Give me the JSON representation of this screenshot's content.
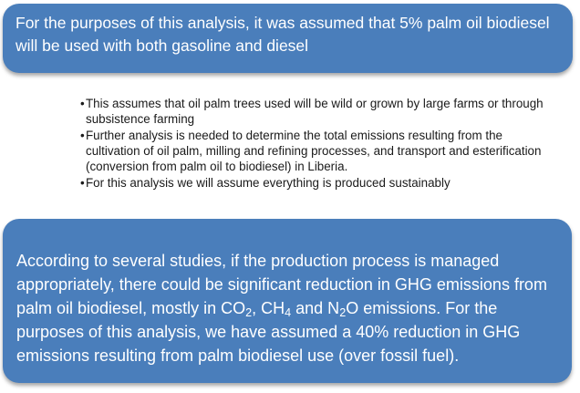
{
  "top_box": {
    "text": "For the purposes of this analysis, it was assumed that 5% palm oil biodiesel will be used with both gasoline and diesel"
  },
  "bullets": [
    "This assumes that oil palm trees used will be wild or grown by large farms or through subsistence farming",
    "Further analysis is needed to determine the total emissions resulting from the cultivation of oil palm, milling and refining processes, and transport and esterification (conversion from palm oil to biodiesel) in Liberia.",
    "For this analysis we will assume everything is produced sustainably"
  ],
  "bottom_box": {
    "text_part1": "According to several studies, if the production process is managed appropriately, there could be significant reduction in GHG emissions from palm oil biodiesel, mostly in CO",
    "co2_sub": "2",
    "sep1": ", CH",
    "ch4_sub": "4",
    "sep2": " and N",
    "n2o_sub": "2",
    "text_part2": "O emissions.  For the purposes of this analysis, we have assumed a 40% reduction in GHG emissions resulting from palm biodiesel use (over fossil fuel)."
  },
  "colors": {
    "box_fill": "#4a7ebb",
    "box_text": "#ffffff",
    "bullet_text": "#1a1a1a"
  }
}
